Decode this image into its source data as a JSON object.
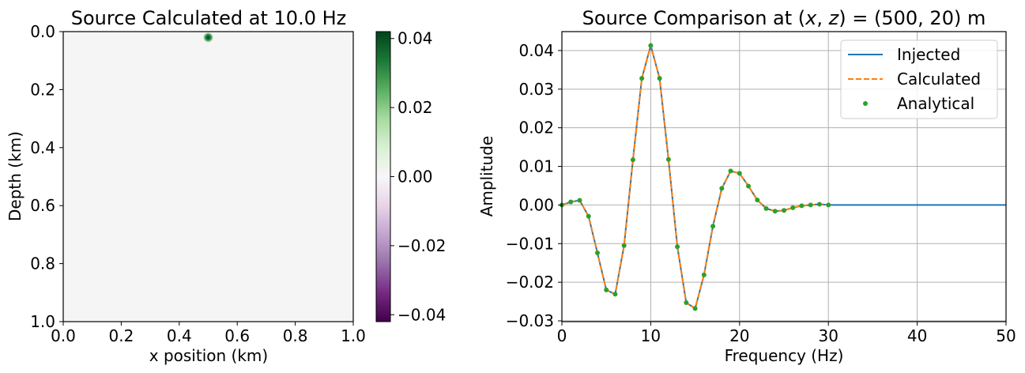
{
  "chart_data": [
    {
      "type": "heatmap",
      "title": "Source Calculated at 10.0 Hz",
      "xlabel": "x position (km)",
      "ylabel": "Depth (km)",
      "xlim": [
        0.0,
        1.0
      ],
      "ylim": [
        1.0,
        0.0
      ],
      "xticks": [
        "0.0",
        "0.2",
        "0.4",
        "0.6",
        "0.8",
        "1.0"
      ],
      "yticks": [
        "0.0",
        "0.2",
        "0.4",
        "0.6",
        "0.8",
        "1.0"
      ],
      "colormap": "PRGn",
      "background_value": 0.0,
      "source_point": {
        "x_km": 0.5,
        "z_km": 0.02,
        "value": 0.041
      },
      "colorbar": {
        "vmin": -0.042,
        "vmax": 0.042,
        "ticks": [
          "0.04",
          "0.02",
          "0.00",
          "−0.02",
          "−0.04"
        ],
        "tick_values": [
          0.04,
          0.02,
          0.0,
          -0.02,
          -0.04
        ]
      },
      "grid": false
    },
    {
      "type": "line",
      "title": "Source Comparison at (x, z) = (500, 20) m",
      "title_parts": {
        "prefix": "Source Comparison at ",
        "lparen": "(",
        "x": "x",
        "comma": ", ",
        "z": "z",
        "rparen": ")",
        "eq": " = ",
        "value": "(500, 20) m"
      },
      "xlabel": "Frequency (Hz)",
      "ylabel": "Amplitude",
      "xlim": [
        0,
        50
      ],
      "ylim": [
        -0.0302,
        0.0449
      ],
      "xticks": [
        "0",
        "10",
        "20",
        "30",
        "40",
        "50"
      ],
      "yticks": [
        "0.04",
        "0.03",
        "0.02",
        "0.01",
        "0.00",
        "−0.01",
        "−0.02",
        "−0.03"
      ],
      "grid": true,
      "legend_position": "upper right",
      "x": [
        0,
        1,
        2,
        3,
        4,
        5,
        6,
        7,
        8,
        9,
        10,
        11,
        12,
        13,
        14,
        15,
        16,
        17,
        18,
        19,
        20,
        21,
        22,
        23,
        24,
        25,
        26,
        27,
        28,
        29,
        30
      ],
      "series": [
        {
          "name": "Injected",
          "style": "solid",
          "color": "#1f77b4",
          "values": [
            0.0,
            0.0008,
            0.0012,
            -0.0029,
            -0.0124,
            -0.022,
            -0.0231,
            -0.0105,
            0.0117,
            0.0328,
            0.0413,
            0.0328,
            0.0118,
            -0.0108,
            -0.0253,
            -0.0268,
            -0.0181,
            -0.0055,
            0.0043,
            0.0088,
            0.0082,
            0.0049,
            0.0013,
            -0.0009,
            -0.0016,
            -0.0014,
            -0.0007,
            -0.0002,
            0.0,
            0.0002,
            0.0
          ],
          "extends_to_x": 50,
          "tail_value": 0.0
        },
        {
          "name": "Calculated",
          "style": "dashed",
          "color": "#ff7f0e",
          "values": [
            0.0,
            0.0008,
            0.0012,
            -0.0029,
            -0.0124,
            -0.022,
            -0.0231,
            -0.0105,
            0.0117,
            0.0328,
            0.0413,
            0.0328,
            0.0118,
            -0.0108,
            -0.0253,
            -0.0268,
            -0.0181,
            -0.0055,
            0.0043,
            0.0088,
            0.0082,
            0.0049,
            0.0013,
            -0.0009,
            -0.0016,
            -0.0014,
            -0.0007,
            -0.0002,
            0.0,
            0.0002,
            0.0
          ]
        },
        {
          "name": "Analytical",
          "style": "points",
          "color": "#2ca02c",
          "values": [
            0.0,
            0.0008,
            0.0012,
            -0.0029,
            -0.0124,
            -0.022,
            -0.0231,
            -0.0105,
            0.0117,
            0.0328,
            0.0413,
            0.0328,
            0.0118,
            -0.0108,
            -0.0253,
            -0.0268,
            -0.0181,
            -0.0055,
            0.0043,
            0.0088,
            0.0082,
            0.0049,
            0.0013,
            -0.0009,
            -0.0016,
            -0.0014,
            -0.0007,
            -0.0002,
            0.0,
            0.0002,
            0.0
          ]
        }
      ]
    }
  ]
}
